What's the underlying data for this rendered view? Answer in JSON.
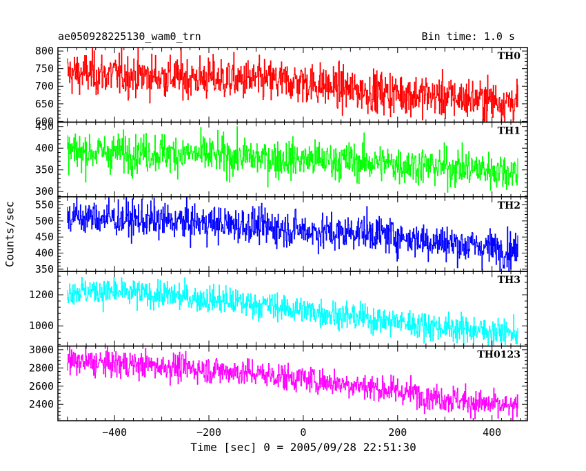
{
  "header": {
    "title_left": "ae050928225130_wam0_trn",
    "title_right": "Bin time: 1.0 s"
  },
  "chart_data": {
    "type": "line",
    "xlabel": "Time [sec] 0 = 2005/09/28 22:51:30",
    "ylabel": "Counts/sec",
    "xlim": [
      -520,
      475
    ],
    "x_ticks": [
      -400,
      -200,
      0,
      200,
      400
    ],
    "x_range": [
      -500,
      455
    ],
    "bin_time_s": 1.0,
    "panels": [
      {
        "name": "TH0",
        "color": "#ff0000",
        "ylim": [
          598,
          810
        ],
        "y_ticks": [
          600,
          650,
          700,
          750,
          800
        ],
        "trend": [
          [
            -500,
            738
          ],
          [
            -300,
            728
          ],
          [
            -100,
            716
          ],
          [
            0,
            712
          ],
          [
            100,
            690
          ],
          [
            455,
            655
          ]
        ],
        "noise_sd": 30
      },
      {
        "name": "TH1",
        "color": "#00ff00",
        "ylim": [
          288,
          460
        ],
        "y_ticks": [
          300,
          350,
          400,
          450
        ],
        "trend": [
          [
            -500,
            392
          ],
          [
            -300,
            390
          ],
          [
            -100,
            378
          ],
          [
            100,
            370
          ],
          [
            455,
            346
          ]
        ],
        "noise_sd": 22
      },
      {
        "name": "TH2",
        "color": "#0000ff",
        "ylim": [
          343,
          575
        ],
        "y_ticks": [
          350,
          400,
          450,
          500,
          550
        ],
        "trend": [
          [
            -500,
            515
          ],
          [
            -300,
            500
          ],
          [
            -100,
            485
          ],
          [
            80,
            460
          ],
          [
            110,
            470
          ],
          [
            300,
            432
          ],
          [
            455,
            408
          ]
        ],
        "noise_sd": 28
      },
      {
        "name": "TH3",
        "color": "#00ffff",
        "ylim": [
          870,
          1350
        ],
        "y_ticks": [
          1000,
          1200
        ],
        "trend": [
          [
            -500,
            1230
          ],
          [
            -300,
            1200
          ],
          [
            -100,
            1140
          ],
          [
            100,
            1060
          ],
          [
            300,
            990
          ],
          [
            455,
            950
          ]
        ],
        "noise_sd": 45
      },
      {
        "name": "TH0123",
        "color": "#ff00ff",
        "ylim": [
          2220,
          3040
        ],
        "y_ticks": [
          2400,
          2600,
          2800,
          3000
        ],
        "trend": [
          [
            -500,
            2870
          ],
          [
            -300,
            2820
          ],
          [
            -100,
            2740
          ],
          [
            100,
            2620
          ],
          [
            300,
            2470
          ],
          [
            455,
            2350
          ]
        ],
        "noise_sd": 75
      }
    ]
  }
}
